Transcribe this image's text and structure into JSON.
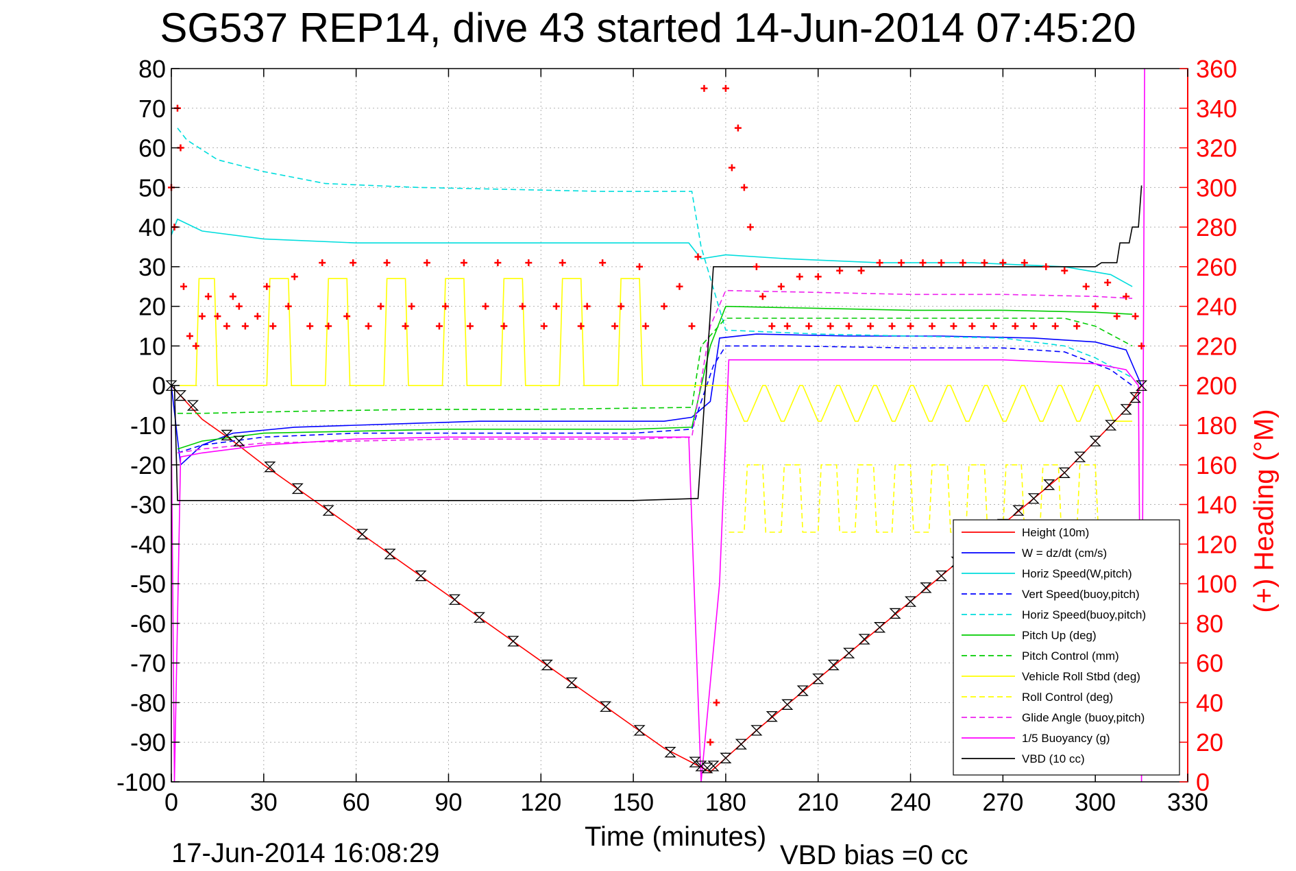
{
  "chart_data": {
    "type": "line",
    "title": "SG537 REP14, dive 43 started 14-Jun-2014 07:45:20",
    "xlabel": "Time (minutes)",
    "ylabel": "",
    "y2label": "(+) Heading (°M)",
    "xlim": [
      0,
      330
    ],
    "ylim": [
      -100,
      80
    ],
    "y2lim": [
      0,
      360
    ],
    "xticks": [
      "0",
      "30",
      "60",
      "90",
      "120",
      "150",
      "180",
      "210",
      "240",
      "270",
      "300",
      "330"
    ],
    "yticks": [
      "80",
      "70",
      "60",
      "50",
      "40",
      "30",
      "20",
      "10",
      "0",
      "-10",
      "-20",
      "-30",
      "-40",
      "-50",
      "-60",
      "-70",
      "-80",
      "-90",
      "-100"
    ],
    "y2ticks": [
      "360",
      "340",
      "320",
      "300",
      "280",
      "260",
      "240",
      "220",
      "200",
      "180",
      "160",
      "140",
      "120",
      "100",
      "80",
      "60",
      "40",
      "20",
      "0"
    ],
    "grid": true,
    "legend_position": "lower-right",
    "footer_date": "17-Jun-2014 16:08:29",
    "footer_note": "VBD bias =0 cc",
    "series": [
      {
        "name": "Height (10m)",
        "color": "#ff0000",
        "style": "solid",
        "x": [
          0,
          10,
          20,
          30,
          40,
          50,
          60,
          70,
          80,
          90,
          100,
          110,
          120,
          130,
          140,
          150,
          160,
          170,
          175,
          180,
          190,
          200,
          210,
          220,
          230,
          240,
          250,
          260,
          270,
          280,
          290,
          300,
          310,
          315
        ],
        "y": [
          0,
          -8.5,
          -14,
          -20,
          -25.5,
          -31,
          -36.5,
          -42,
          -47.5,
          -53,
          -58.5,
          -64,
          -69.5,
          -75,
          -80.5,
          -86,
          -91.5,
          -95.5,
          -97.5,
          -94,
          -87,
          -80.5,
          -74,
          -67.5,
          -61,
          -54.5,
          -48,
          -41.5,
          -35,
          -28.5,
          -22,
          -14,
          -6,
          0
        ]
      },
      {
        "name": "W = dz/dt (cm/s)",
        "color": "#0000ff",
        "style": "solid",
        "x": [
          0,
          3,
          10,
          20,
          40,
          60,
          80,
          100,
          120,
          140,
          160,
          169,
          175,
          178,
          190,
          220,
          250,
          280,
          300,
          310,
          315
        ],
        "y": [
          0,
          -20,
          -15,
          -12,
          -10.5,
          -10,
          -9.5,
          -9,
          -9,
          -9,
          -9,
          -8,
          -4,
          12,
          13,
          12.5,
          12.5,
          12,
          11,
          9,
          0
        ]
      },
      {
        "name": "Horiz Speed(W,pitch)",
        "color": "#00dddd",
        "style": "solid",
        "x": [
          0,
          2,
          10,
          30,
          60,
          90,
          120,
          150,
          168,
          172,
          180,
          200,
          230,
          260,
          290,
          305,
          312
        ],
        "y": [
          38,
          42,
          39,
          37,
          36,
          36,
          36,
          36,
          36,
          32,
          33,
          32,
          31,
          31,
          30,
          28,
          25
        ]
      },
      {
        "name": "Vert Speed(buoy,pitch)",
        "color": "#0000ff",
        "style": "dashed",
        "x": [
          2,
          10,
          30,
          60,
          90,
          120,
          150,
          169,
          176,
          180,
          200,
          240,
          270,
          290,
          305,
          312
        ],
        "y": [
          -17,
          -15,
          -13,
          -12,
          -12,
          -12,
          -12,
          -11,
          5,
          10,
          10,
          9.5,
          9.5,
          8.5,
          4,
          0
        ]
      },
      {
        "name": "Horiz Speed(buoy,pitch)",
        "color": "#00dddd",
        "style": "dashed",
        "x": [
          2,
          5,
          15,
          30,
          50,
          80,
          110,
          140,
          169,
          172,
          180,
          210,
          240,
          270,
          290,
          300,
          312
        ],
        "y": [
          65,
          62,
          57,
          54,
          51,
          50,
          49.5,
          49,
          49,
          35,
          14,
          13,
          12.5,
          12,
          10,
          7,
          2
        ]
      },
      {
        "name": "Pitch Up (deg)",
        "color": "#00cc00",
        "style": "solid",
        "x": [
          2,
          10,
          30,
          60,
          90,
          120,
          150,
          169,
          175,
          180,
          210,
          240,
          270,
          300,
          312
        ],
        "y": [
          -16,
          -14,
          -12,
          -11.5,
          -11,
          -11,
          -11,
          -10.5,
          10,
          20,
          19.5,
          19,
          19,
          18.5,
          18
        ]
      },
      {
        "name": "Pitch Control (mm)",
        "color": "#00cc00",
        "style": "dashed",
        "x": [
          2,
          10,
          40,
          80,
          120,
          169,
          172,
          180,
          210,
          250,
          290,
          300,
          312
        ],
        "y": [
          -7,
          -7,
          -6.5,
          -6,
          -6,
          -5.5,
          10,
          17,
          17,
          17,
          17,
          15,
          10
        ]
      },
      {
        "name": "Vehicle Roll Stbd (deg)",
        "color": "#ffff00",
        "style": "solid",
        "x": [
          2,
          8,
          9,
          14,
          15,
          31,
          32,
          38,
          39,
          50,
          51,
          57,
          58,
          69,
          70,
          76,
          77,
          88,
          89,
          95,
          96,
          107,
          108,
          114,
          115,
          126,
          127,
          133,
          134,
          145,
          146,
          152,
          153,
          169,
          180,
          181,
          186,
          187,
          192,
          193,
          198,
          199,
          204,
          205,
          210,
          211,
          216,
          217,
          222,
          223,
          228,
          229,
          234,
          235,
          240,
          241,
          246,
          247,
          252,
          253,
          258,
          259,
          264,
          265,
          270,
          271,
          276,
          277,
          282,
          283,
          288,
          289,
          294,
          295,
          300,
          301,
          306,
          312
        ],
        "y": [
          0,
          0,
          27,
          27,
          0,
          0,
          27,
          27,
          0,
          0,
          27,
          27,
          0,
          0,
          27,
          27,
          0,
          0,
          27,
          27,
          0,
          0,
          27,
          27,
          0,
          0,
          27,
          27,
          0,
          0,
          27,
          27,
          0,
          0,
          0,
          0,
          -9,
          -9,
          0,
          0,
          -9,
          -9,
          0,
          0,
          -9,
          -9,
          0,
          0,
          -9,
          -9,
          0,
          0,
          -9,
          -9,
          0,
          0,
          -9,
          -9,
          0,
          0,
          -9,
          -9,
          0,
          0,
          -9,
          -9,
          0,
          0,
          -9,
          -9,
          0,
          0,
          -9,
          -9,
          0,
          0,
          -9,
          -9
        ]
      },
      {
        "name": "Roll Control (deg)",
        "color": "#ffff00",
        "style": "dashed",
        "x": [
          181,
          186,
          187,
          192,
          193,
          198,
          199,
          204,
          205,
          210,
          211,
          216,
          217,
          222,
          223,
          228,
          229,
          234,
          235,
          240,
          241,
          246,
          247,
          252,
          253,
          258,
          259,
          264,
          265,
          270,
          271,
          276,
          277,
          282,
          283,
          288,
          289,
          294,
          295,
          300,
          301,
          306
        ],
        "y": [
          -37,
          -37,
          -20,
          -20,
          -37,
          -37,
          -20,
          -20,
          -37,
          -37,
          -20,
          -20,
          -37,
          -37,
          -20,
          -20,
          -37,
          -37,
          -20,
          -20,
          -37,
          -37,
          -20,
          -20,
          -37,
          -37,
          -20,
          -20,
          -37,
          -37,
          -20,
          -20,
          -37,
          -37,
          -20,
          -20,
          -37,
          -37,
          -20,
          -20,
          -37,
          -37
        ]
      },
      {
        "name": "Glide Angle (buoy,pitch)",
        "color": "#ee22ee",
        "style": "dashed",
        "x": [
          2,
          10,
          30,
          60,
          90,
          120,
          150,
          169,
          175,
          180,
          210,
          240,
          270,
          300,
          312
        ],
        "y": [
          -17,
          -16,
          -14.5,
          -14,
          -13.5,
          -13.5,
          -13.5,
          -13,
          15,
          24,
          23.5,
          23,
          23,
          22.5,
          22
        ]
      },
      {
        "name": "1/5 Buoyancy (g)",
        "color": "#ff00ff",
        "style": "solid",
        "x": [
          0,
          1,
          3,
          10,
          30,
          60,
          90,
          120,
          150,
          168,
          172,
          178,
          181,
          210,
          240,
          270,
          300,
          310,
          314,
          315,
          316
        ],
        "y": [
          -10,
          -100,
          -18,
          -17,
          -15,
          -13.5,
          -13,
          -13,
          -13,
          -13,
          -100,
          -50,
          6.5,
          6.5,
          6.5,
          6.5,
          5.5,
          4,
          0,
          -100,
          80
        ]
      },
      {
        "name": "VBD (10 cc)",
        "color": "#000000",
        "style": "solid",
        "x": [
          0,
          1,
          2,
          30,
          60,
          90,
          120,
          150,
          170,
          171,
          176,
          177,
          300,
          302,
          307,
          308,
          311,
          312,
          314,
          315
        ],
        "y": [
          0,
          0,
          -29,
          -29,
          -29,
          -29,
          -29,
          -29,
          -28.5,
          -28.5,
          30,
          30,
          30,
          31,
          31,
          36,
          36,
          40,
          40,
          50.5
        ]
      },
      {
        "name": "Heading",
        "color": "#ff0000",
        "axis": "right",
        "style": "markers",
        "x": [
          0,
          1,
          2,
          3,
          4,
          6,
          8,
          10,
          12,
          15,
          18,
          20,
          22,
          24,
          28,
          31,
          33,
          38,
          40,
          45,
          49,
          51,
          57,
          59,
          64,
          68,
          70,
          76,
          78,
          83,
          87,
          89,
          95,
          97,
          102,
          106,
          108,
          114,
          116,
          121,
          125,
          127,
          133,
          135,
          140,
          144,
          146,
          152,
          154,
          160,
          165,
          169,
          171,
          173,
          175,
          177,
          180,
          182,
          184,
          186,
          188,
          190,
          192,
          195,
          198,
          200,
          204,
          207,
          210,
          214,
          217,
          220,
          224,
          227,
          230,
          234,
          237,
          240,
          244,
          247,
          250,
          254,
          257,
          260,
          264,
          267,
          270,
          274,
          277,
          280,
          284,
          287,
          290,
          294,
          297,
          300,
          304,
          307,
          310,
          313,
          315
        ],
        "y": [
          300,
          280,
          340,
          320,
          250,
          225,
          220,
          235,
          245,
          235,
          230,
          245,
          240,
          230,
          235,
          250,
          230,
          240,
          255,
          230,
          262,
          230,
          235,
          262,
          230,
          240,
          262,
          230,
          240,
          262,
          230,
          240,
          262,
          230,
          240,
          262,
          230,
          240,
          262,
          230,
          240,
          262,
          230,
          240,
          262,
          230,
          240,
          260,
          230,
          240,
          250,
          230,
          265,
          350,
          20,
          40,
          350,
          310,
          330,
          300,
          280,
          260,
          245,
          230,
          250,
          230,
          255,
          230,
          255,
          230,
          258,
          230,
          258,
          230,
          262,
          230,
          262,
          230,
          262,
          230,
          262,
          230,
          262,
          230,
          262,
          230,
          262,
          230,
          262,
          230,
          260,
          230,
          258,
          230,
          250,
          240,
          252,
          235,
          245,
          235,
          220
        ]
      }
    ],
    "markers": {
      "name": "Height samples",
      "color": "#000000",
      "symbol": "hourglass",
      "x": [
        0,
        3,
        7,
        18,
        22,
        32,
        41,
        51,
        62,
        71,
        81,
        92,
        100,
        111,
        122,
        130,
        141,
        152,
        162,
        170,
        172,
        174,
        176,
        180,
        185,
        190,
        195,
        200,
        205,
        210,
        215,
        220,
        225,
        230,
        235,
        240,
        245,
        250,
        255,
        260,
        265,
        270,
        275,
        280,
        285,
        290,
        295,
        300,
        305,
        310,
        313,
        315
      ],
      "y": [
        0,
        -2.5,
        -5,
        -12.5,
        -14,
        -20.5,
        -26,
        -31.5,
        -37.5,
        -42.5,
        -48,
        -54,
        -58.5,
        -64.5,
        -70.5,
        -75,
        -81,
        -87,
        -92.5,
        -95,
        -96,
        -96.5,
        -96,
        -94,
        -90.5,
        -87,
        -83.5,
        -80.5,
        -77,
        -74,
        -70.5,
        -67.5,
        -64,
        -61,
        -57.5,
        -54.5,
        -51,
        -48,
        -44.5,
        -41.5,
        -38,
        -35,
        -31.5,
        -28.5,
        -25,
        -22,
        -18,
        -14,
        -10,
        -6,
        -3,
        0
      ]
    }
  }
}
